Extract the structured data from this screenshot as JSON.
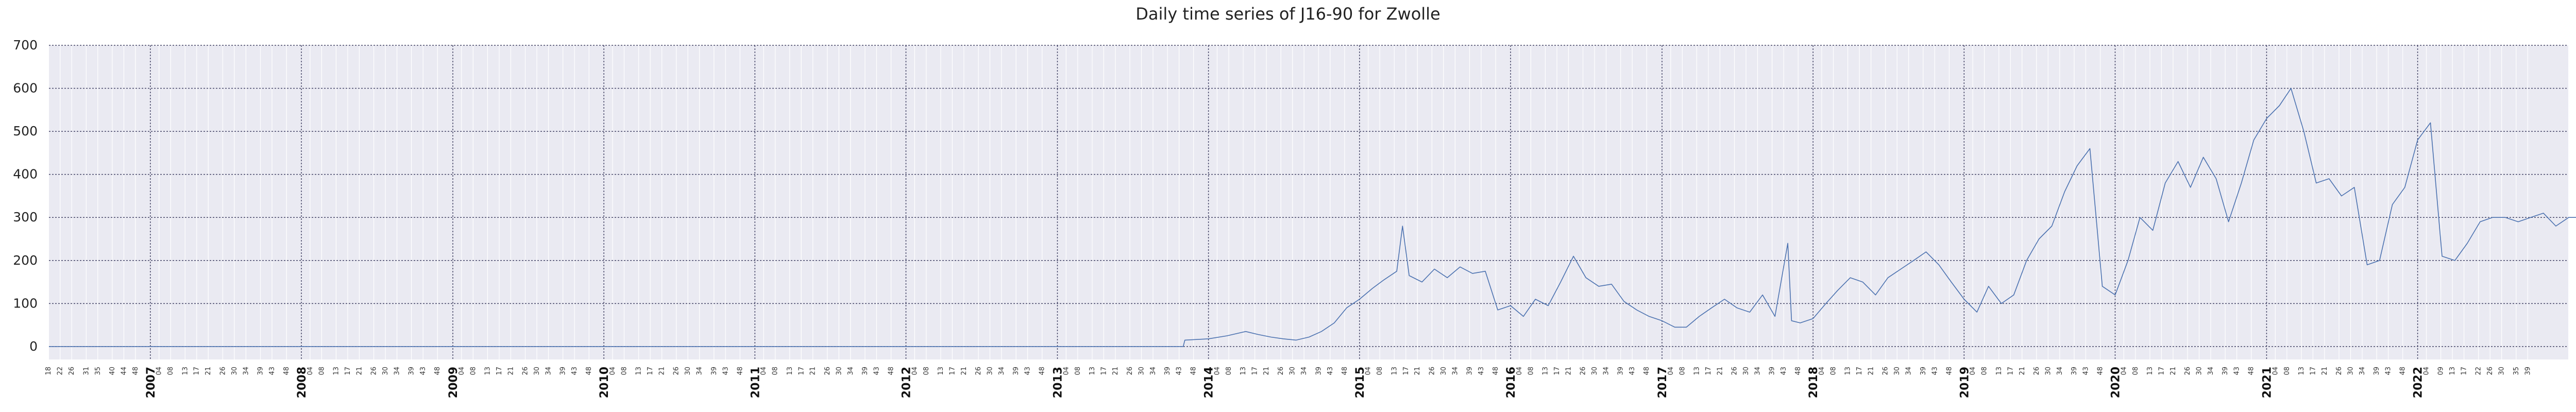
{
  "chart_data": {
    "type": "line",
    "title": "Daily time series of J16-90 for Zwolle",
    "xlabel": "",
    "ylabel": "",
    "ylim": [
      -30,
      700
    ],
    "xlim": [
      "2006-05-01",
      "2022-12-31"
    ],
    "yticks": [
      0,
      100,
      200,
      300,
      400,
      500,
      600,
      700
    ],
    "year_ticks": [
      "2007",
      "2008",
      "2009",
      "2010",
      "2011",
      "2012",
      "2013",
      "2014",
      "2015",
      "2016",
      "2017",
      "2018",
      "2019",
      "2020",
      "2021",
      "2022"
    ],
    "week_ticks_first_partial_year": [
      "18",
      "22",
      "26",
      "31",
      "35",
      "40",
      "44",
      "48"
    ],
    "week_ticks_per_year": [
      "04",
      "08",
      "13",
      "17",
      "21",
      "26",
      "30",
      "34",
      "39",
      "43",
      "48"
    ],
    "week_ticks_after_last_year": [
      "04",
      "09",
      "13",
      "17",
      "22",
      "26",
      "30",
      "35",
      "39"
    ],
    "grid": true,
    "line_color": "#4c72b0",
    "plot_background": "#eaeaf2",
    "series": [
      {
        "points": [
          [
            "2006-05-01",
            0
          ],
          [
            "2013-11-01",
            0
          ],
          [
            "2013-11-05",
            15
          ],
          [
            "2014-01-01",
            18
          ],
          [
            "2014-02-15",
            25
          ],
          [
            "2014-04-01",
            35
          ],
          [
            "2014-05-01",
            28
          ],
          [
            "2014-06-01",
            22
          ],
          [
            "2014-07-01",
            18
          ],
          [
            "2014-08-01",
            15
          ],
          [
            "2014-09-01",
            22
          ],
          [
            "2014-10-01",
            35
          ],
          [
            "2014-11-01",
            55
          ],
          [
            "2014-12-01",
            90
          ],
          [
            "2015-01-01",
            110
          ],
          [
            "2015-02-01",
            135
          ],
          [
            "2015-03-01",
            155
          ],
          [
            "2015-04-01",
            175
          ],
          [
            "2015-04-15",
            280
          ],
          [
            "2015-05-01",
            165
          ],
          [
            "2015-06-01",
            150
          ],
          [
            "2015-07-01",
            180
          ],
          [
            "2015-08-01",
            160
          ],
          [
            "2015-09-01",
            185
          ],
          [
            "2015-10-01",
            170
          ],
          [
            "2015-11-01",
            175
          ],
          [
            "2015-12-01",
            85
          ],
          [
            "2016-01-01",
            95
          ],
          [
            "2016-02-01",
            70
          ],
          [
            "2016-03-01",
            110
          ],
          [
            "2016-04-01",
            95
          ],
          [
            "2016-05-01",
            150
          ],
          [
            "2016-06-01",
            210
          ],
          [
            "2016-07-01",
            160
          ],
          [
            "2016-08-01",
            140
          ],
          [
            "2016-09-01",
            145
          ],
          [
            "2016-10-01",
            105
          ],
          [
            "2016-11-01",
            85
          ],
          [
            "2016-12-01",
            70
          ],
          [
            "2017-01-01",
            60
          ],
          [
            "2017-02-01",
            45
          ],
          [
            "2017-03-01",
            45
          ],
          [
            "2017-04-01",
            70
          ],
          [
            "2017-05-01",
            90
          ],
          [
            "2017-06-01",
            110
          ],
          [
            "2017-07-01",
            90
          ],
          [
            "2017-08-01",
            80
          ],
          [
            "2017-09-01",
            120
          ],
          [
            "2017-10-01",
            70
          ],
          [
            "2017-11-01",
            240
          ],
          [
            "2017-11-10",
            60
          ],
          [
            "2017-12-01",
            55
          ],
          [
            "2018-01-01",
            65
          ],
          [
            "2018-02-01",
            100
          ],
          [
            "2018-03-01",
            130
          ],
          [
            "2018-04-01",
            160
          ],
          [
            "2018-05-01",
            150
          ],
          [
            "2018-06-01",
            120
          ],
          [
            "2018-07-01",
            160
          ],
          [
            "2018-08-01",
            180
          ],
          [
            "2018-09-01",
            200
          ],
          [
            "2018-10-01",
            220
          ],
          [
            "2018-11-01",
            190
          ],
          [
            "2018-12-01",
            150
          ],
          [
            "2019-01-01",
            110
          ],
          [
            "2019-02-01",
            80
          ],
          [
            "2019-03-01",
            140
          ],
          [
            "2019-04-01",
            100
          ],
          [
            "2019-05-01",
            120
          ],
          [
            "2019-06-01",
            200
          ],
          [
            "2019-07-01",
            250
          ],
          [
            "2019-08-01",
            280
          ],
          [
            "2019-09-01",
            360
          ],
          [
            "2019-10-01",
            420
          ],
          [
            "2019-11-01",
            460
          ],
          [
            "2019-12-01",
            140
          ],
          [
            "2020-01-01",
            120
          ],
          [
            "2020-02-01",
            200
          ],
          [
            "2020-03-01",
            300
          ],
          [
            "2020-04-01",
            270
          ],
          [
            "2020-05-01",
            380
          ],
          [
            "2020-06-01",
            430
          ],
          [
            "2020-07-01",
            370
          ],
          [
            "2020-08-01",
            440
          ],
          [
            "2020-09-01",
            390
          ],
          [
            "2020-10-01",
            290
          ],
          [
            "2020-11-01",
            380
          ],
          [
            "2020-12-01",
            480
          ],
          [
            "2021-01-01",
            530
          ],
          [
            "2021-02-01",
            560
          ],
          [
            "2021-03-01",
            600
          ],
          [
            "2021-04-01",
            500
          ],
          [
            "2021-05-01",
            380
          ],
          [
            "2021-06-01",
            390
          ],
          [
            "2021-07-01",
            350
          ],
          [
            "2021-08-01",
            370
          ],
          [
            "2021-09-01",
            190
          ],
          [
            "2021-10-01",
            200
          ],
          [
            "2021-11-01",
            330
          ],
          [
            "2021-12-01",
            370
          ],
          [
            "2022-01-01",
            480
          ],
          [
            "2022-02-01",
            520
          ],
          [
            "2022-03-01",
            210
          ],
          [
            "2022-04-01",
            200
          ],
          [
            "2022-05-01",
            240
          ],
          [
            "2022-06-01",
            290
          ],
          [
            "2022-07-01",
            300
          ],
          [
            "2022-08-01",
            300
          ],
          [
            "2022-09-01",
            290
          ],
          [
            "2022-10-01",
            300
          ],
          [
            "2022-11-01",
            310
          ],
          [
            "2022-12-01",
            280
          ],
          [
            "2023-01-01",
            300
          ],
          [
            "2023-02-01",
            300
          ],
          [
            "2023-03-01",
            290
          ],
          [
            "2023-04-01",
            300
          ],
          [
            "2023-05-01",
            300
          ],
          [
            "2023-06-01",
            300
          ],
          [
            "2023-07-01",
            300
          ],
          [
            "2023-08-01",
            300
          ]
        ]
      }
    ]
  }
}
